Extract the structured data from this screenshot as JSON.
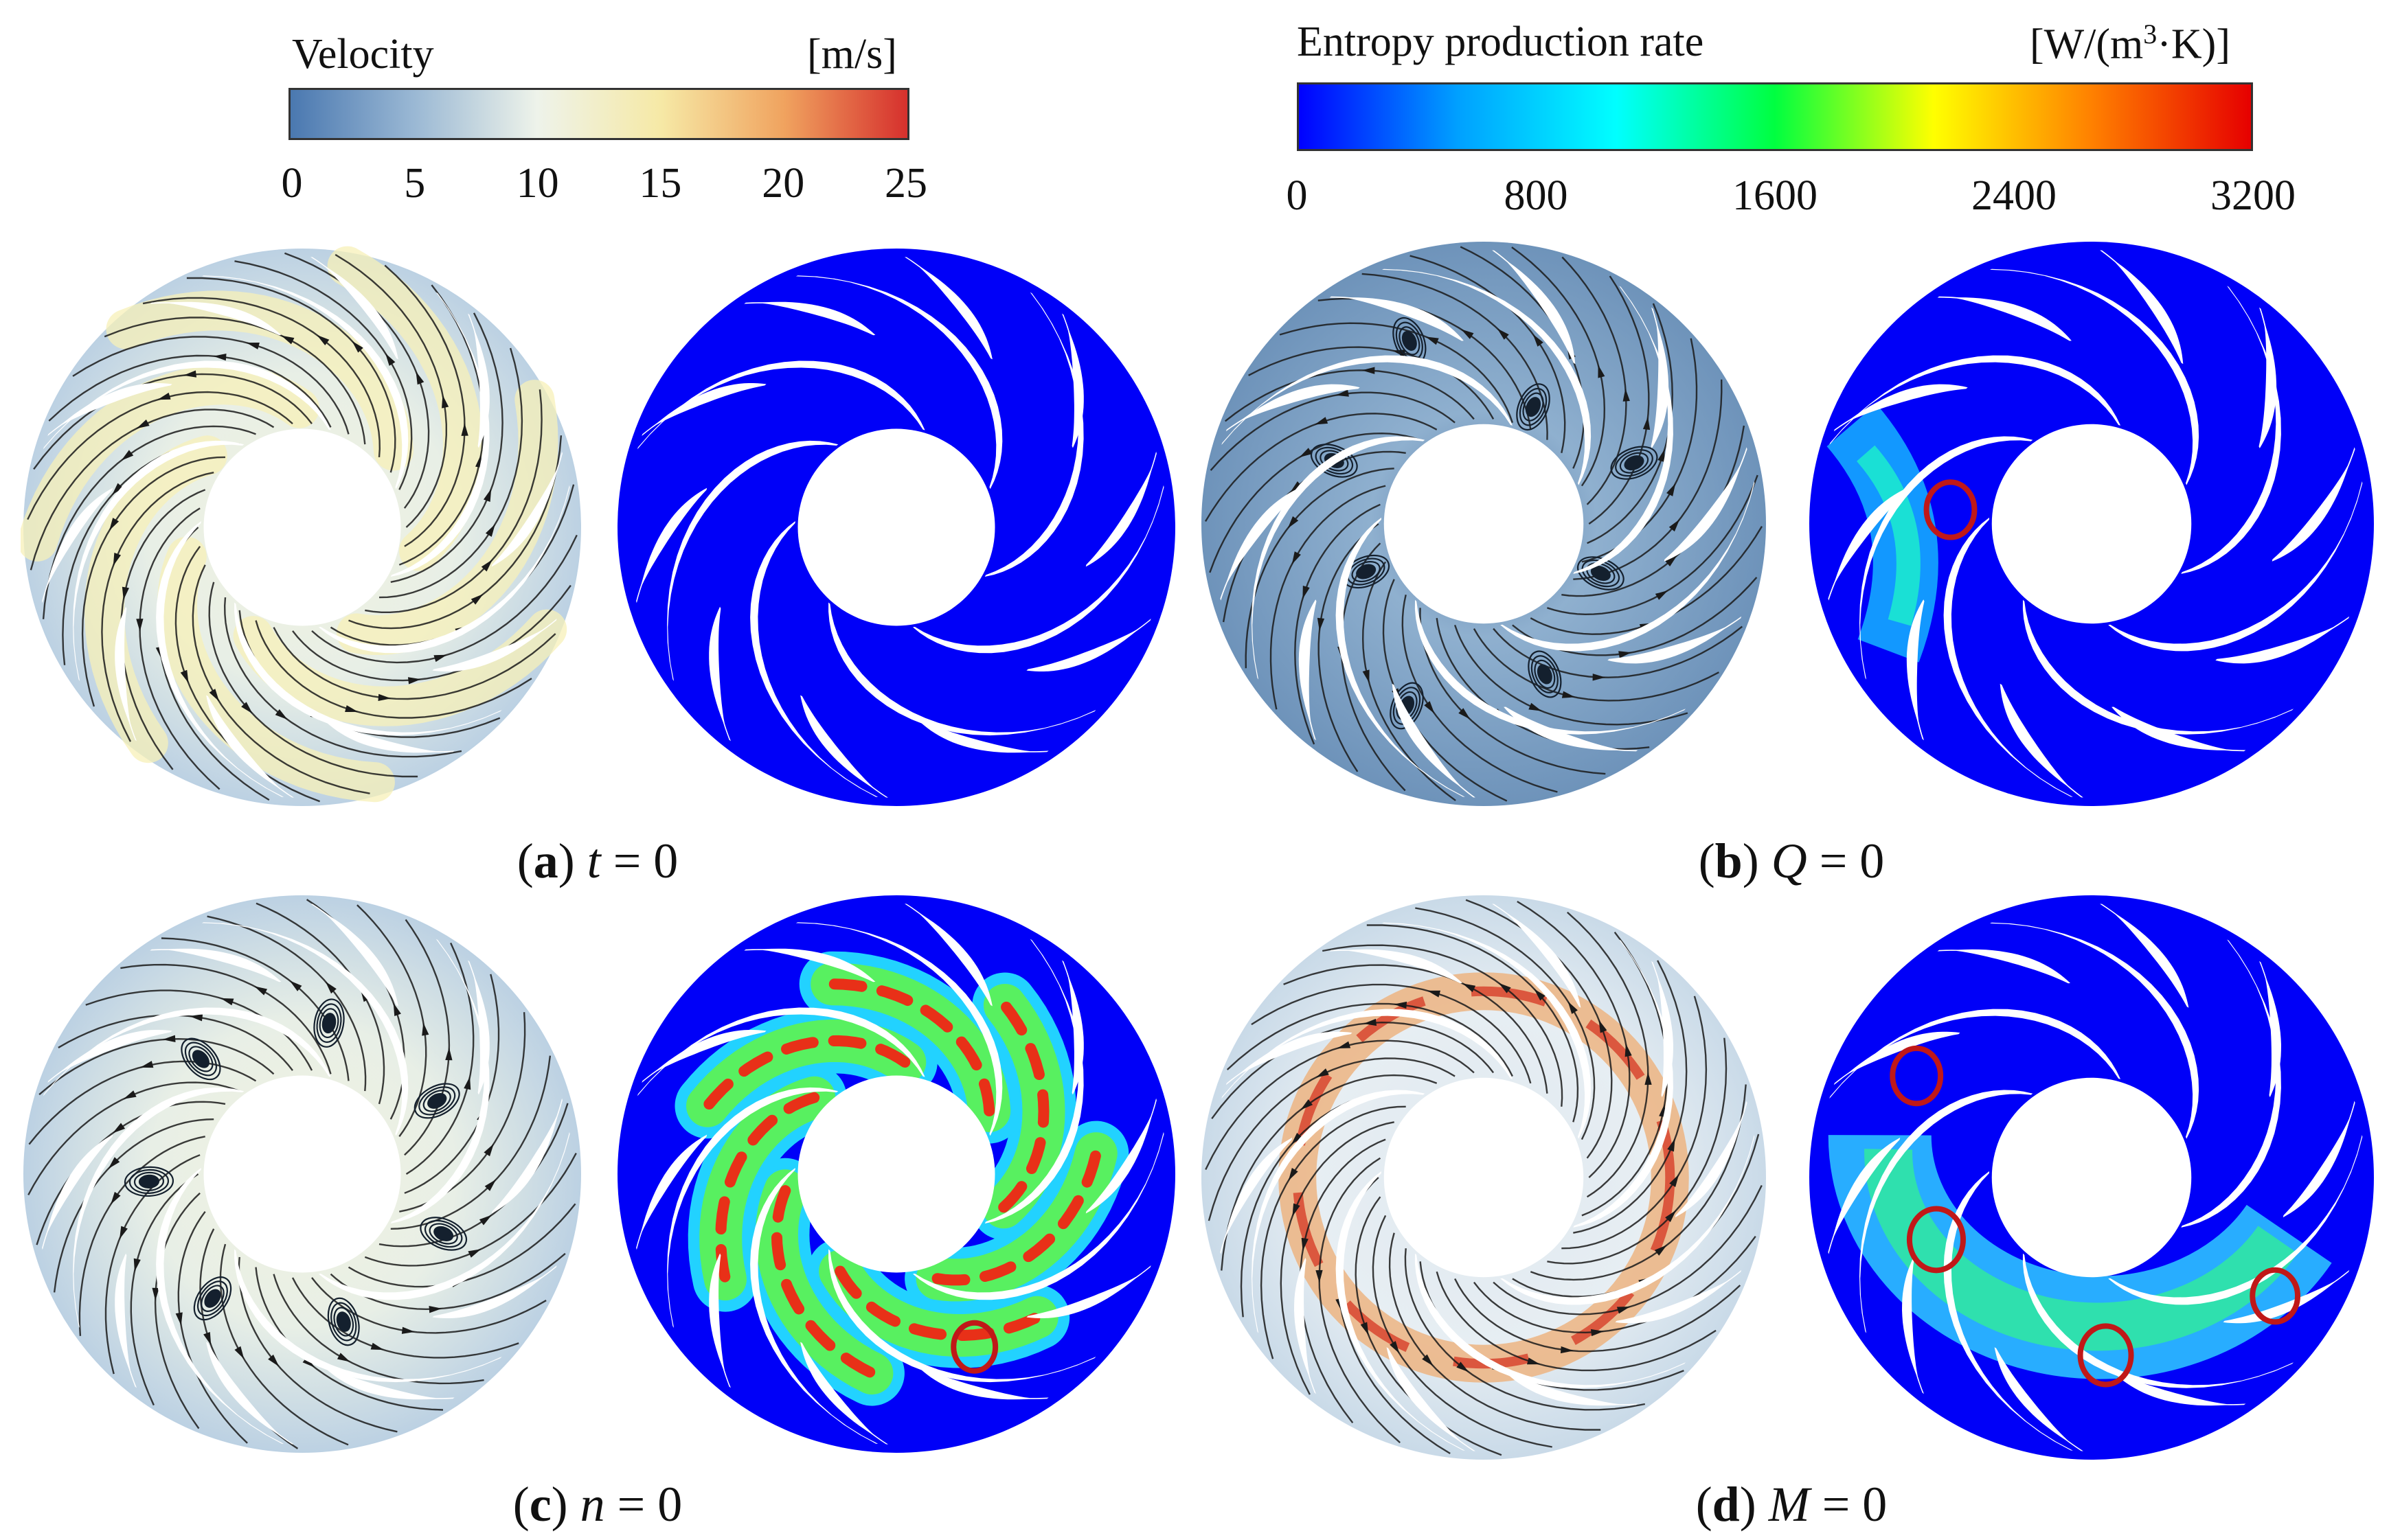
{
  "legends": {
    "velocity": {
      "title": "Velocity",
      "unit": "[m/s]",
      "ticks": [
        "0",
        "5",
        "10",
        "15",
        "20",
        "25"
      ],
      "colors": [
        "#4a78b0",
        "#9ab8d4",
        "#eef3ea",
        "#f6e9a6",
        "#f0a35f",
        "#d6302d"
      ]
    },
    "entropy": {
      "title": "Entropy production rate",
      "unit_main": "[W/(m",
      "unit_sup": "3",
      "unit_tail": "·K)]",
      "ticks": [
        "0",
        "800",
        "1600",
        "2400",
        "3200"
      ],
      "colors": [
        "#0000ff",
        "#00a0ff",
        "#00ffff",
        "#00ff40",
        "#ffff00",
        "#ff8000",
        "#e60000"
      ]
    }
  },
  "captions": [
    {
      "letter": "a",
      "variable": "t",
      "rest": " = 0"
    },
    {
      "letter": "b",
      "variable": "Q",
      "rest": " = 0"
    },
    {
      "letter": "c",
      "variable": "n",
      "rest": " = 0"
    },
    {
      "letter": "d",
      "variable": "M",
      "rest": " = 0"
    }
  ],
  "colors": {
    "velocity_base": "#cdddea",
    "velocity_base_dark": "#7f9fbf",
    "entropy_base": "#0000f8",
    "streamline": "#1a1a1a",
    "highlight_circle": "#c01818",
    "blade": "#ffffff"
  }
}
